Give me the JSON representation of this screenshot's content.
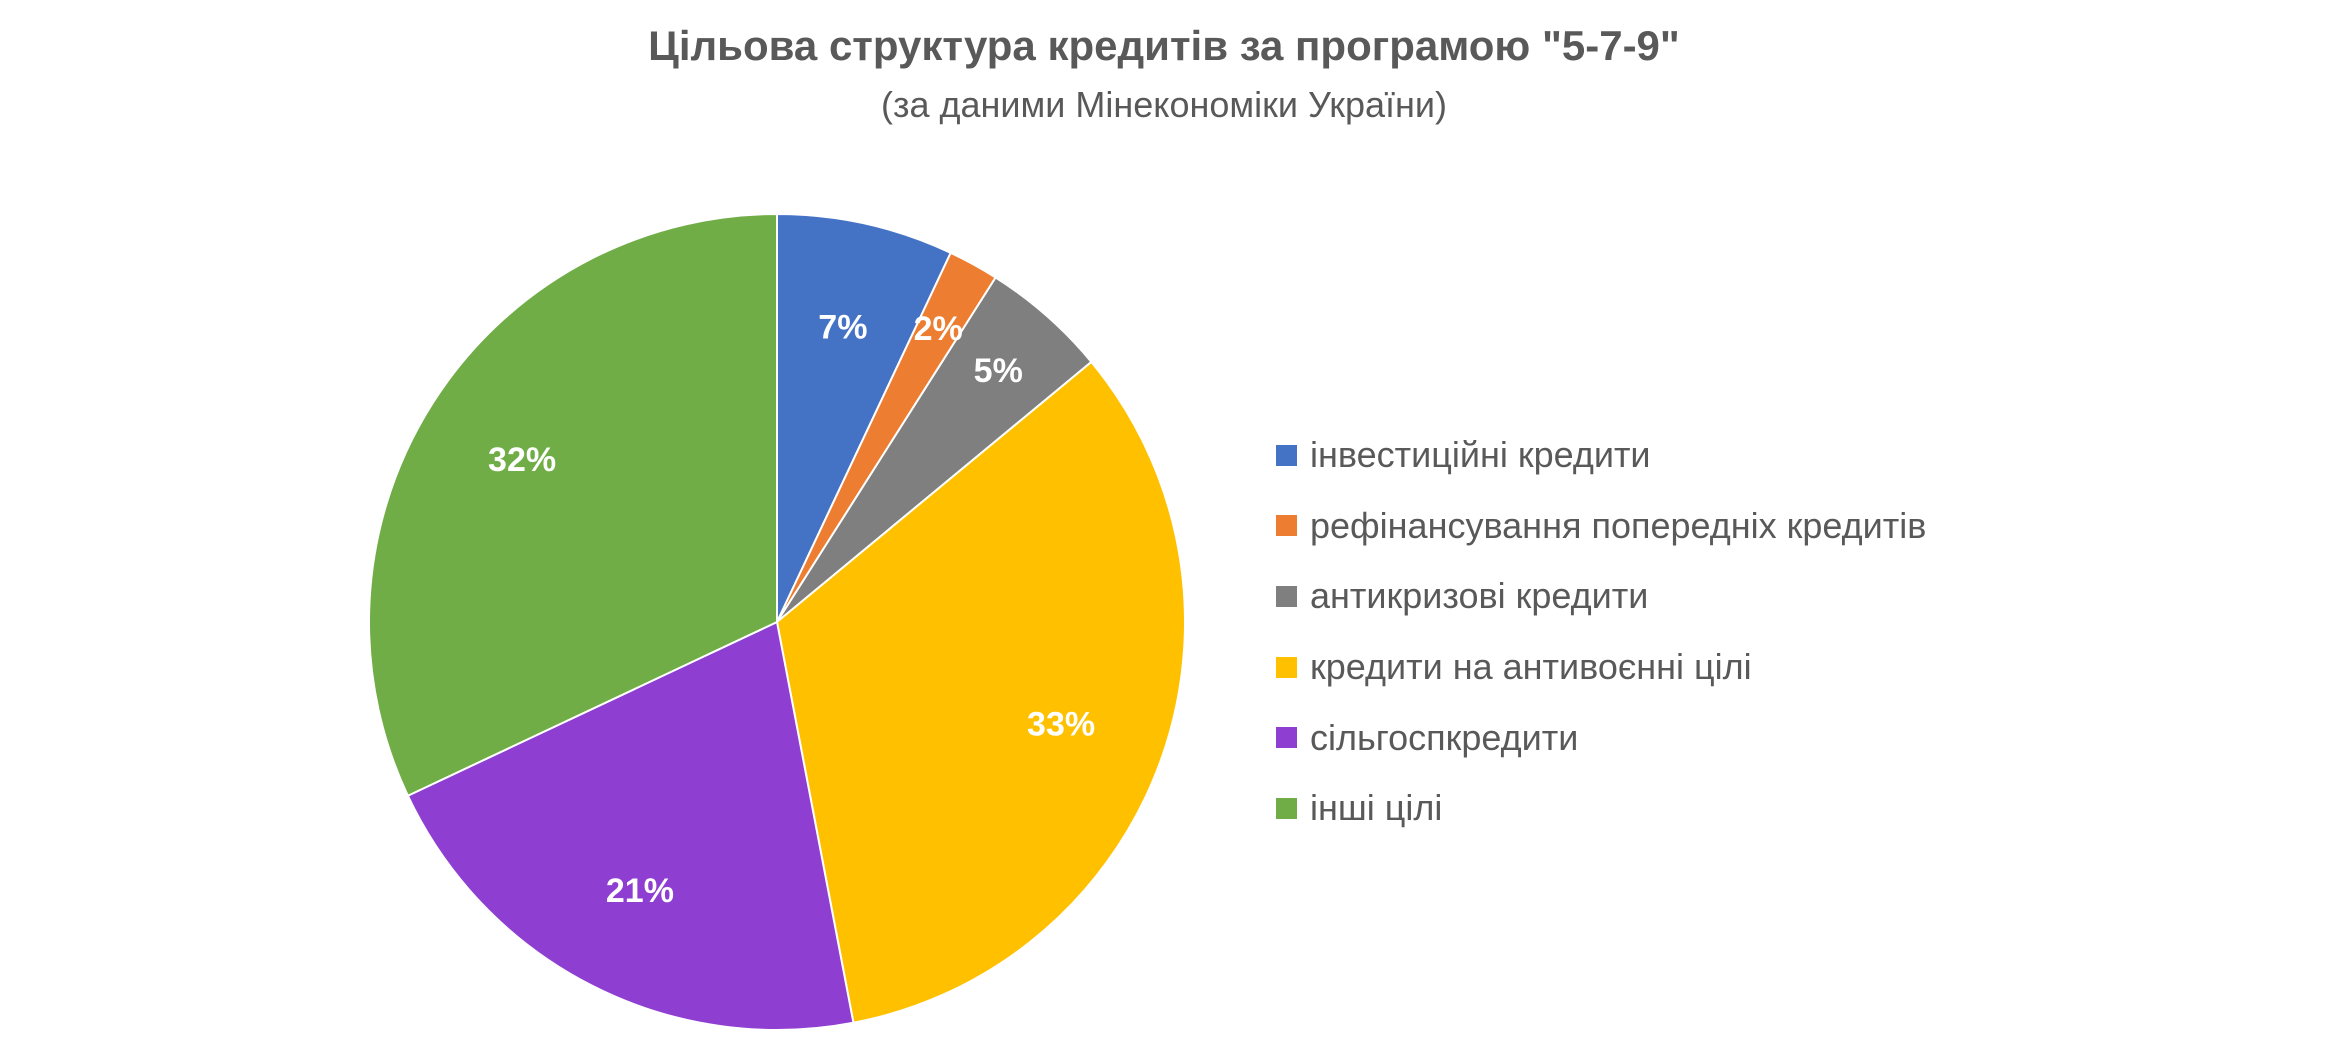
{
  "chart_data": {
    "type": "pie",
    "title": "Цільова структура кредитів за програмою \"5-7-9\"",
    "subtitle": "(за даними Мінекономіки України)",
    "start_angle_deg": 0,
    "direction": "clockwise",
    "legend_position": "right",
    "slices": [
      {
        "label": "інвестиційні кредити",
        "value": 7,
        "value_label": "7%",
        "color": "#4472C4"
      },
      {
        "label": "рефінансування попередніх кредитів",
        "value": 2,
        "value_label": "2%",
        "color": "#ED7D31"
      },
      {
        "label": "антикризові кредити",
        "value": 5,
        "value_label": "5%",
        "color": "#7F7F7F"
      },
      {
        "label": "кредити на антивоєнні цілі",
        "value": 33,
        "value_label": "33%",
        "color": "#FFC000"
      },
      {
        "label": "сільгоспкредити",
        "value": 21,
        "value_label": "21%",
        "color": "#8E3FD1"
      },
      {
        "label": "інші цілі",
        "value": 32,
        "value_label": "32%",
        "color": "#70AD47"
      }
    ]
  }
}
